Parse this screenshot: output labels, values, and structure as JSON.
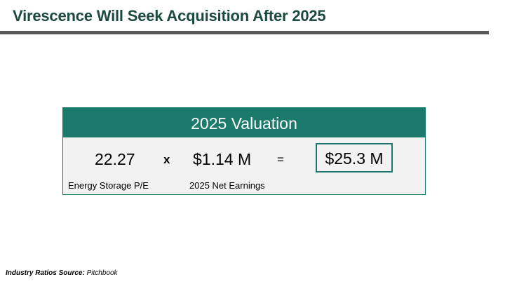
{
  "slide": {
    "title": "Virescence Will Seek Acquisition After 2025"
  },
  "valuation": {
    "header": "2025 Valuation",
    "pe_value": "22.27",
    "multiply_sign": "x",
    "net_earnings_value": "$1.14 M",
    "equals_sign": "=",
    "result_value": "$25.3 M",
    "pe_label": "Energy Storage P/E",
    "net_earnings_label": "2025 Net Earnings"
  },
  "footnote": {
    "label": "Industry Ratios Source:",
    "source": "Pitchbook"
  },
  "colors": {
    "title": "#1c4a3f",
    "accent": "#1b7a6c",
    "rule": "#595959",
    "card_background": "#f2f2f2"
  }
}
